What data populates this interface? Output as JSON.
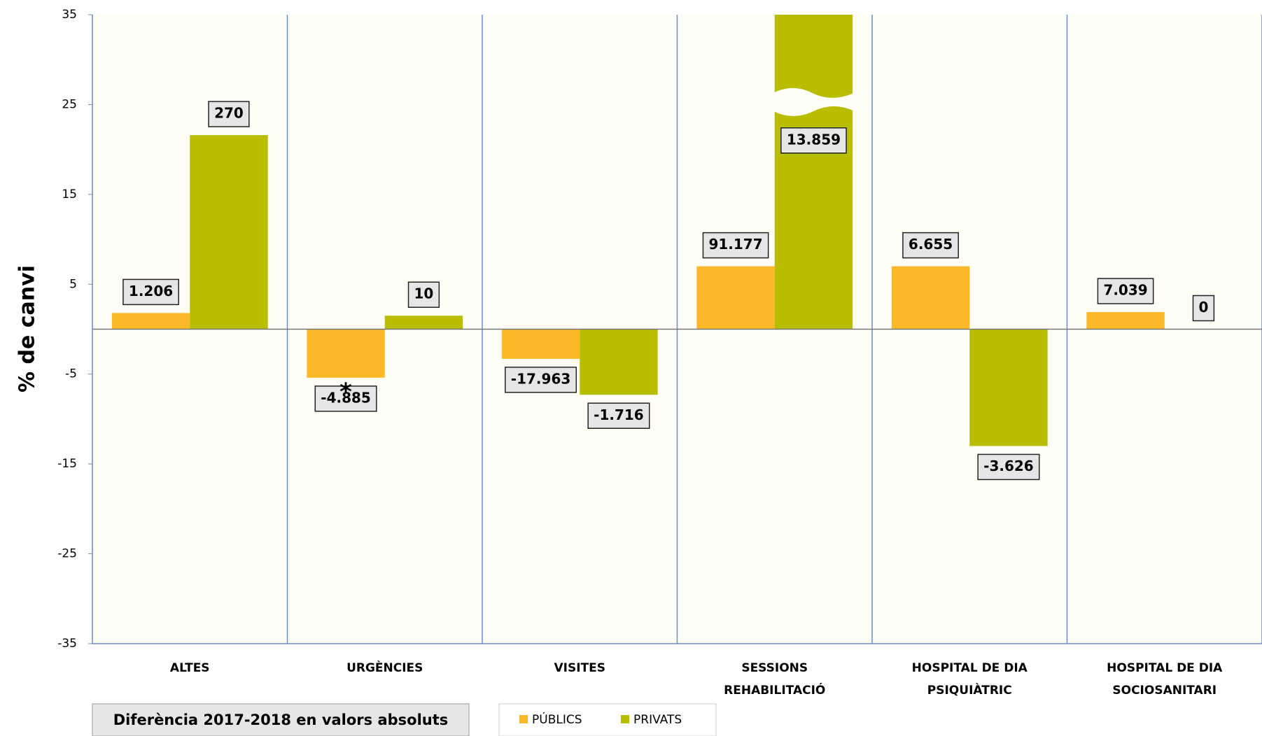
{
  "chart_data": {
    "type": "bar",
    "y_label": "% de  canvi",
    "categories": [
      [
        "ALTES"
      ],
      [
        "URGÈNCIES"
      ],
      [
        "VISITES"
      ],
      [
        "SESSIONS",
        "REHABILITACIÓ"
      ],
      [
        "HOSPITAL DE DIA",
        "PSIQUIÀTRIC"
      ],
      [
        "HOSPITAL DE DIA",
        "SOCIOSANITARI"
      ]
    ],
    "series": [
      {
        "name": "PÚBLICS",
        "color": "#fbb829",
        "values": [
          1.8,
          -5.4,
          -3.3,
          7.0,
          7.0,
          1.9
        ],
        "abs_labels": [
          "1.206",
          "-4.885",
          "-17.963",
          "91.177",
          "6.655",
          "7.039"
        ]
      },
      {
        "name": "PRIVATS",
        "color": "#b8bd00",
        "values": [
          21.6,
          1.5,
          -7.3,
          35,
          -13.0,
          0
        ],
        "abs_labels": [
          "270",
          "10",
          "-1.716",
          "13.859",
          "-3.626",
          "0"
        ]
      }
    ],
    "annotations": [
      {
        "series": 0,
        "index": 1,
        "text": "*"
      }
    ],
    "note": "Diferència  2017-2018 en valors absoluts",
    "ylim": [
      -35,
      35
    ],
    "yticks": [
      -35,
      -25,
      -15,
      -5,
      5,
      15,
      25,
      35
    ]
  }
}
